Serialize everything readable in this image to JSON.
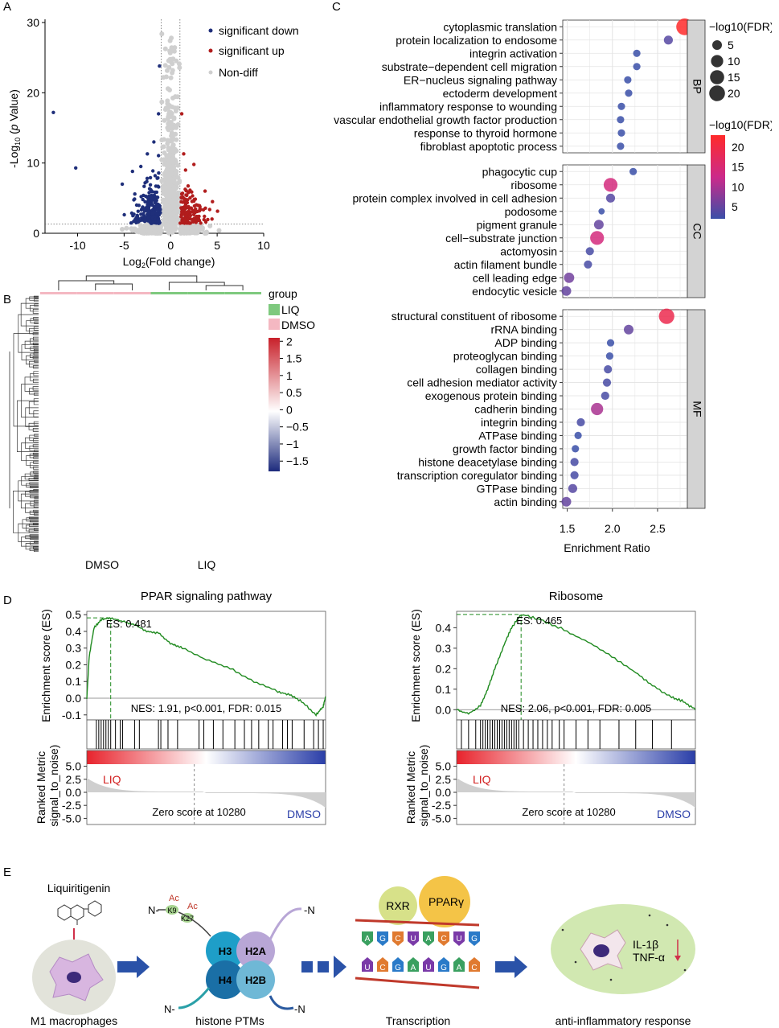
{
  "panel_labels": {
    "a": "A",
    "b": "B",
    "c": "C",
    "d": "D",
    "e": "E"
  },
  "colors": {
    "down": "#1f2f7a",
    "up": "#b11d1d",
    "nondiff": "#cfcfcf",
    "green_line": "#1f8a1f",
    "heat_high": "#c8202a",
    "heat_mid": "#ffffff",
    "heat_low": "#1c2a7c",
    "bubble_low": "#3a4fa8",
    "bubble_high": "#ff2a2a",
    "liq_green": "#7ec97e",
    "dmso_pink": "#f4b8c2",
    "facet_bg": "#d3d3d3"
  },
  "chart_data": [
    {
      "id": "volcano",
      "type": "scatter",
      "title": "",
      "xlabel": "Log2(Fold change)",
      "ylabel": "-Log10 (p Value)",
      "xlim": [
        -13.5,
        10
      ],
      "ylim": [
        0,
        30
      ],
      "xticks": [
        -10,
        -5,
        0,
        5,
        10
      ],
      "yticks": [
        0,
        10,
        20,
        30
      ],
      "thresholds": {
        "x": [
          -1,
          1
        ],
        "y": 1.3
      },
      "legend": [
        "significant down",
        "significant up",
        "Non-diff"
      ],
      "highlight_points": {
        "down": [
          [
            -12.6,
            17.2
          ],
          [
            -10.2,
            9.3
          ],
          [
            -5.2,
            7.0
          ],
          [
            -2.5,
            11.3
          ],
          [
            -1.8,
            13.0
          ],
          [
            -1.3,
            17.0
          ],
          [
            -1.2,
            23.8
          ],
          [
            -4.1,
            8.8
          ],
          [
            -3.2,
            9.5
          ]
        ],
        "up": [
          [
            1.4,
            11.3
          ],
          [
            1.6,
            9.0
          ],
          [
            2.5,
            9.8
          ],
          [
            1.2,
            17.0
          ],
          [
            3.7,
            6.0
          ],
          [
            4.5,
            4.5
          ]
        ]
      }
    },
    {
      "id": "heatmap",
      "type": "heatmap",
      "columns": [
        "DMSO",
        "DMSO",
        "DMSO",
        "LIQ",
        "LIQ",
        "LIQ"
      ],
      "xlabels": [
        "DMSO",
        "LIQ"
      ],
      "legend_title": "group",
      "groups": [
        "LIQ",
        "DMSO"
      ],
      "scale_ticks": [
        "2",
        "1.5",
        "1",
        "0.5",
        "0",
        "−0.5",
        "−1",
        "−1.5"
      ],
      "scale_range": [
        -1.8,
        2.1
      ]
    },
    {
      "id": "go_enrichment",
      "type": "scatter",
      "xlabel": "Enrichment Ratio",
      "xlim": [
        1.45,
        2.83
      ],
      "xticks": [
        "1.5",
        "2.0",
        "2.5"
      ],
      "size_legend_title": "−log10(FDR)",
      "size_legend": [
        "5",
        "10",
        "15",
        "20"
      ],
      "color_legend_title": "−log10(FDR)",
      "color_legend": [
        "20",
        "15",
        "10",
        "5"
      ],
      "facets": [
        {
          "name": "BP",
          "terms": [
            {
              "term": "cytoplasmic translation",
              "x": 2.8,
              "fdr": 23
            },
            {
              "term": "protein localization to endosome",
              "x": 2.62,
              "fdr": 4
            },
            {
              "term": "integrin activation",
              "x": 2.27,
              "fdr": 2
            },
            {
              "term": "substrate−dependent cell migration",
              "x": 2.27,
              "fdr": 2
            },
            {
              "term": "ER−nucleus signaling pathway",
              "x": 2.17,
              "fdr": 2
            },
            {
              "term": "ectoderm development",
              "x": 2.18,
              "fdr": 2
            },
            {
              "term": "inflammatory response to wounding",
              "x": 2.1,
              "fdr": 2
            },
            {
              "term": "vascular endothelial growth factor production",
              "x": 2.09,
              "fdr": 2
            },
            {
              "term": "response to thyroid hormone",
              "x": 2.1,
              "fdr": 2
            },
            {
              "term": "fibroblast apoptotic process",
              "x": 2.09,
              "fdr": 2
            }
          ]
        },
        {
          "name": "CC",
          "terms": [
            {
              "term": "phagocytic cup",
              "x": 2.23,
              "fdr": 2
            },
            {
              "term": "ribosome",
              "x": 1.98,
              "fdr": 14
            },
            {
              "term": "protein complex involved in cell adhesion",
              "x": 1.98,
              "fdr": 4
            },
            {
              "term": "podosome",
              "x": 1.88,
              "fdr": 1
            },
            {
              "term": "pigment granule",
              "x": 1.85,
              "fdr": 5
            },
            {
              "term": "cell−substrate junction",
              "x": 1.83,
              "fdr": 14
            },
            {
              "term": "actomyosin",
              "x": 1.75,
              "fdr": 3
            },
            {
              "term": "actin filament bundle",
              "x": 1.73,
              "fdr": 3
            },
            {
              "term": "cell leading edge",
              "x": 1.52,
              "fdr": 6
            },
            {
              "term": "endocytic vesicle",
              "x": 1.49,
              "fdr": 5
            }
          ]
        },
        {
          "name": "MF",
          "terms": [
            {
              "term": "structural constituent of ribosome",
              "x": 2.6,
              "fdr": 19
            },
            {
              "term": "rRNA binding",
              "x": 2.18,
              "fdr": 5
            },
            {
              "term": "ADP binding",
              "x": 1.98,
              "fdr": 2
            },
            {
              "term": "proteoglycan binding",
              "x": 1.97,
              "fdr": 2
            },
            {
              "term": "collagen binding",
              "x": 1.95,
              "fdr": 3
            },
            {
              "term": "cell adhesion mediator activity",
              "x": 1.94,
              "fdr": 3
            },
            {
              "term": "exogenous protein binding",
              "x": 1.92,
              "fdr": 3
            },
            {
              "term": "cadherin binding",
              "x": 1.83,
              "fdr": 10
            },
            {
              "term": "integrin binding",
              "x": 1.65,
              "fdr": 3
            },
            {
              "term": "ATPase binding",
              "x": 1.62,
              "fdr": 2
            },
            {
              "term": "growth factor binding",
              "x": 1.59,
              "fdr": 2
            },
            {
              "term": "histone deacetylase binding",
              "x": 1.58,
              "fdr": 3
            },
            {
              "term": "transcription coregulator binding",
              "x": 1.58,
              "fdr": 3
            },
            {
              "term": "GTPase binding",
              "x": 1.56,
              "fdr": 4
            },
            {
              "term": "actin binding",
              "x": 1.49,
              "fdr": 5
            }
          ]
        }
      ]
    },
    {
      "id": "gsea_ppar",
      "type": "line",
      "title": "PPAR signaling pathway",
      "ylabel": "Enrichment score (ES)",
      "yticks": [
        "0.5",
        "0.4",
        "0.3",
        "0.2",
        "0.1",
        "0.0",
        "-0.1"
      ],
      "ylim": [
        -0.13,
        0.52
      ],
      "es_label": "ES: 0.481",
      "es_peak_x": 0.1,
      "stats": "NES: 1.91, p<0.001, FDR: 0.015",
      "ranked_ylabel": "Ranked Metric (signal_to_noise)",
      "ranked_yticks": [
        "5.0",
        "2.5",
        "0.0",
        "-2.5",
        "-5.0"
      ],
      "left_group": "LIQ",
      "right_group": "DMSO",
      "zero_label": "Zero score at 10280",
      "curve": [
        [
          0,
          0
        ],
        [
          0.01,
          0.25
        ],
        [
          0.03,
          0.42
        ],
        [
          0.06,
          0.47
        ],
        [
          0.1,
          0.481
        ],
        [
          0.15,
          0.46
        ],
        [
          0.2,
          0.44
        ],
        [
          0.25,
          0.4
        ],
        [
          0.3,
          0.39
        ],
        [
          0.35,
          0.33
        ],
        [
          0.4,
          0.3
        ],
        [
          0.5,
          0.23
        ],
        [
          0.6,
          0.18
        ],
        [
          0.7,
          0.1
        ],
        [
          0.8,
          0.04
        ],
        [
          0.85,
          0.02
        ],
        [
          0.9,
          -0.02
        ],
        [
          0.96,
          -0.1
        ],
        [
          0.99,
          -0.05
        ],
        [
          1.0,
          0.01
        ]
      ],
      "hits": [
        0.04,
        0.05,
        0.06,
        0.07,
        0.08,
        0.09,
        0.1,
        0.12,
        0.14,
        0.15,
        0.2,
        0.22,
        0.3,
        0.31,
        0.34,
        0.38,
        0.47,
        0.49,
        0.53,
        0.57,
        0.62,
        0.66,
        0.69,
        0.72,
        0.76,
        0.78,
        0.82,
        0.84,
        0.86,
        0.91,
        0.95,
        0.97,
        0.99
      ]
    },
    {
      "id": "gsea_ribosome",
      "type": "line",
      "title": "Ribosome",
      "ylabel": "Enrichment score (ES)",
      "yticks": [
        "0.4",
        "0.3",
        "0.2",
        "0.1",
        "0.0"
      ],
      "ylim": [
        -0.05,
        0.48
      ],
      "es_label": "ES: 0.465",
      "es_peak_x": 0.27,
      "stats": "NES: 2.06, p<0.001, FDR: 0.005",
      "ranked_ylabel": "Ranked Metric (signal_to_noise)",
      "ranked_yticks": [
        "5.0",
        "2.5",
        "0.0",
        "-2.5",
        "-5.0"
      ],
      "left_group": "LIQ",
      "right_group": "DMSO",
      "zero_label": "Zero score at 10280",
      "curve": [
        [
          0,
          0
        ],
        [
          0.05,
          -0.02
        ],
        [
          0.1,
          0.02
        ],
        [
          0.13,
          0.1
        ],
        [
          0.16,
          0.2
        ],
        [
          0.2,
          0.32
        ],
        [
          0.23,
          0.4
        ],
        [
          0.27,
          0.465
        ],
        [
          0.35,
          0.44
        ],
        [
          0.45,
          0.39
        ],
        [
          0.55,
          0.33
        ],
        [
          0.65,
          0.26
        ],
        [
          0.75,
          0.18
        ],
        [
          0.82,
          0.12
        ],
        [
          0.9,
          0.06
        ],
        [
          0.95,
          0.04
        ],
        [
          1.0,
          0
        ]
      ],
      "hits": [
        0.02,
        0.05,
        0.08,
        0.1,
        0.11,
        0.12,
        0.13,
        0.14,
        0.15,
        0.16,
        0.17,
        0.18,
        0.19,
        0.2,
        0.21,
        0.22,
        0.23,
        0.24,
        0.25,
        0.26,
        0.28,
        0.3,
        0.32,
        0.34,
        0.36,
        0.38,
        0.4,
        0.43,
        0.45,
        0.5,
        0.55,
        0.6,
        0.68,
        0.75,
        0.82,
        0.9
      ]
    }
  ],
  "schematic": {
    "drug": "Liquiritigenin",
    "labels": [
      "M1 macrophages",
      "histone PTMs",
      "Transcription",
      "anti-inflammatory response"
    ],
    "histones": [
      "H3",
      "H2A",
      "H4",
      "H2B"
    ],
    "marks": [
      "K9",
      "K27"
    ],
    "ac": "Ac",
    "n_term": "N-",
    "n_term_r": "-N",
    "tf": [
      "RXR",
      "PPARγ"
    ],
    "dna_top": [
      "A",
      "G",
      "C",
      "U",
      "A",
      "C",
      "U",
      "G"
    ],
    "dna_bottom": [
      "U",
      "C",
      "G",
      "A",
      "U",
      "G",
      "A",
      "C"
    ],
    "cytokines": [
      "IL-1β",
      "TNF-α"
    ]
  }
}
